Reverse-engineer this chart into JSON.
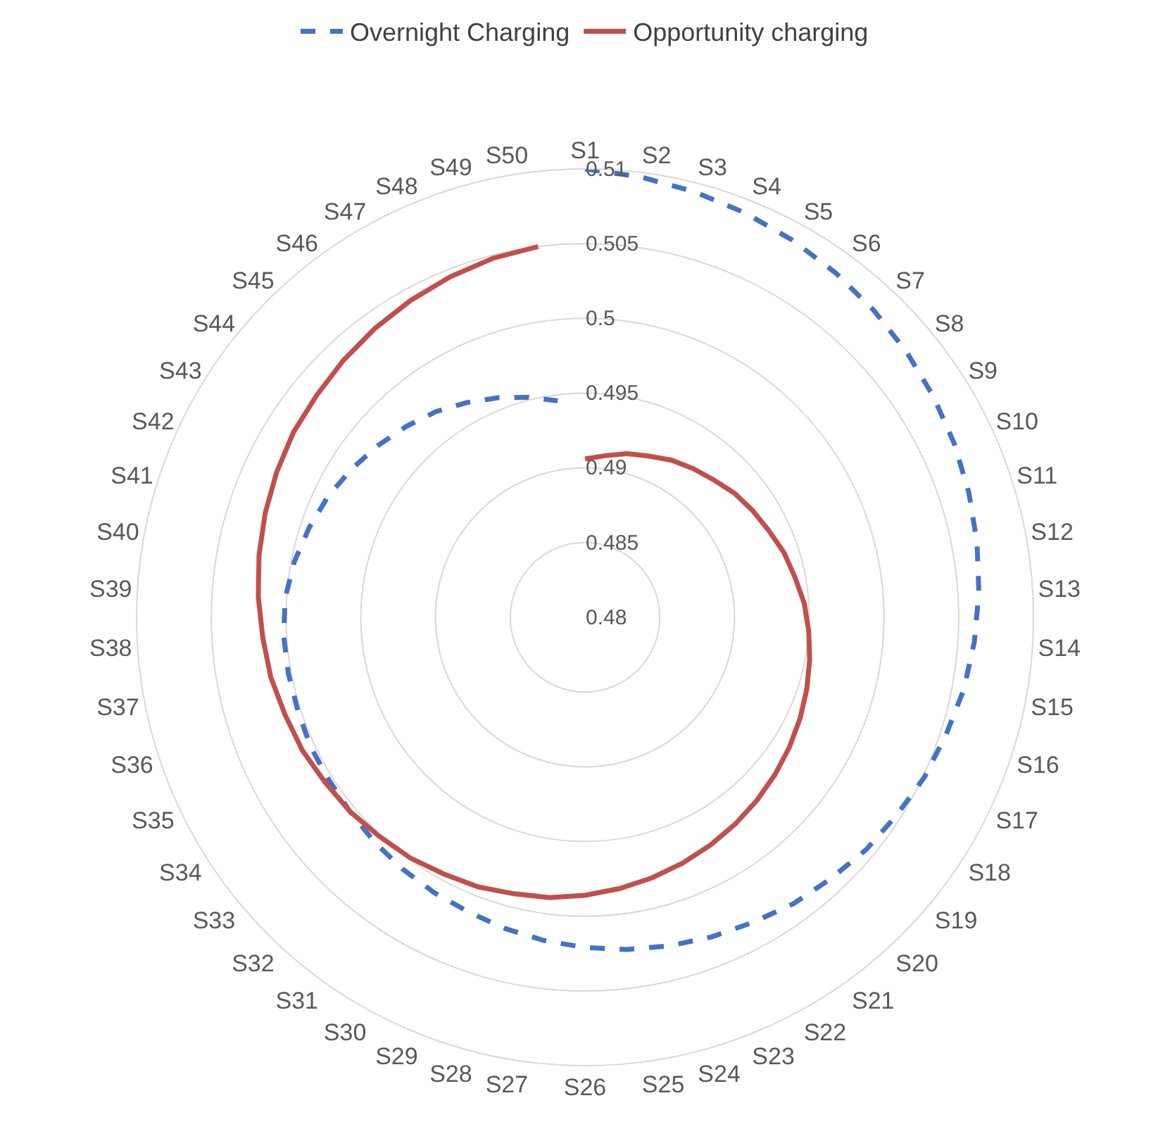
{
  "chart_data": {
    "type": "radar",
    "categories": [
      "S1",
      "S2",
      "S3",
      "S4",
      "S5",
      "S6",
      "S7",
      "S8",
      "S9",
      "S10",
      "S11",
      "S12",
      "S13",
      "S14",
      "S15",
      "S16",
      "S17",
      "S18",
      "S19",
      "S20",
      "S21",
      "S22",
      "S23",
      "S24",
      "S25",
      "S26",
      "S27",
      "S28",
      "S29",
      "S30",
      "S31",
      "S32",
      "S33",
      "S34",
      "S35",
      "S36",
      "S37",
      "S38",
      "S39",
      "S40",
      "S41",
      "S42",
      "S43",
      "S44",
      "S45",
      "S46",
      "S47",
      "S48",
      "S49",
      "S50"
    ],
    "series": [
      {
        "name": "Overnight Charging",
        "color": "#4472c4",
        "line_style": "dashed",
        "values": [
          0.51,
          0.5097,
          0.5094,
          0.5091,
          0.5088,
          0.5085,
          0.5082,
          0.5079,
          0.5076,
          0.5073,
          0.507,
          0.5067,
          0.5064,
          0.5061,
          0.5058,
          0.5054,
          0.5051,
          0.5047,
          0.5044,
          0.504,
          0.5037,
          0.5033,
          0.503,
          0.5027,
          0.5024,
          0.5021,
          0.5018,
          0.5015,
          0.5012,
          0.501,
          0.5008,
          0.5006,
          0.5004,
          0.5003,
          0.5003,
          0.5002,
          0.5002,
          0.5002,
          0.5001,
          0.4998,
          0.4994,
          0.499,
          0.4985,
          0.498,
          0.4975,
          0.497,
          0.4964,
          0.4958,
          0.4952,
          0.4946
        ]
      },
      {
        "name": "Opportunity charging",
        "color": "#c0504d",
        "line_style": "solid",
        "values": [
          0.4906,
          0.4909,
          0.4913,
          0.4916,
          0.492,
          0.4923,
          0.4926,
          0.493,
          0.4933,
          0.4936,
          0.494,
          0.4943,
          0.4947,
          0.495,
          0.4953,
          0.4956,
          0.4959,
          0.4962,
          0.4965,
          0.4968,
          0.4971,
          0.4974,
          0.4977,
          0.498,
          0.4983,
          0.4986,
          0.4989,
          0.4991,
          0.4994,
          0.4996,
          0.4999,
          0.5001,
          0.5004,
          0.5006,
          0.5009,
          0.5011,
          0.5014,
          0.5016,
          0.5019,
          0.5022,
          0.5025,
          0.5028,
          0.5031,
          0.5033,
          0.5036,
          0.5039,
          0.5042,
          0.5045,
          0.5048,
          0.505
        ]
      }
    ],
    "ylim": [
      0.48,
      0.51
    ],
    "yticks": [
      0.48,
      0.485,
      0.49,
      0.495,
      0.5,
      0.505,
      0.51
    ],
    "grid": true,
    "legend": "top",
    "marker": "none"
  }
}
